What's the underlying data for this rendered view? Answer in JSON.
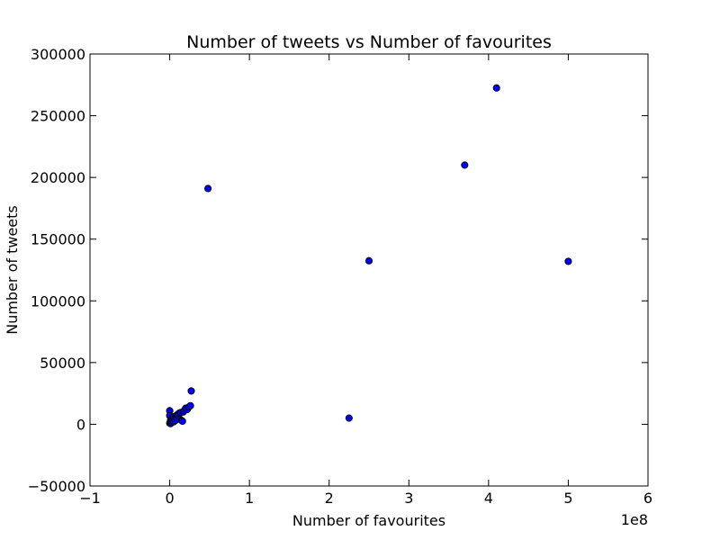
{
  "chart_data": {
    "type": "scatter",
    "title": "Number of tweets vs Number of favourites",
    "xlabel": "Number of favourites",
    "ylabel": "Number of tweets",
    "x_scale_label": "1e8",
    "xlim": [
      -1,
      6
    ],
    "ylim": [
      -50000,
      300000
    ],
    "x_ticks": [
      "−1",
      "0",
      "1",
      "2",
      "3",
      "4",
      "5",
      "6"
    ],
    "y_ticks": [
      "−50000",
      "0",
      "50000",
      "100000",
      "150000",
      "200000",
      "250000",
      "300000"
    ],
    "grid": false,
    "marker_color": "#0000ff",
    "marker_edge_color": "#000000",
    "series": [
      {
        "x": [
          0.0,
          0.0,
          0.0,
          0.01,
          0.01,
          0.02,
          0.02,
          0.03,
          0.03,
          0.04,
          0.05,
          0.05,
          0.06,
          0.07,
          0.08,
          0.09,
          0.1,
          0.11,
          0.12,
          0.13,
          0.14,
          0.15,
          0.16,
          0.17,
          0.18,
          0.2,
          0.22,
          0.24,
          0.26,
          0.27,
          0.48,
          2.25,
          2.5,
          3.7,
          4.1,
          5.0
        ],
        "y": [
          11000,
          7000,
          1000,
          500,
          3000,
          1500,
          4000,
          2500,
          5000,
          3500,
          2000,
          6000,
          4500,
          3000,
          7000,
          5500,
          8000,
          6500,
          9000,
          4000,
          9500,
          3000,
          2500,
          10000,
          11000,
          13000,
          12000,
          14000,
          15000,
          27000,
          191000,
          5000,
          132500,
          210000,
          272500,
          132000
        ]
      }
    ]
  }
}
